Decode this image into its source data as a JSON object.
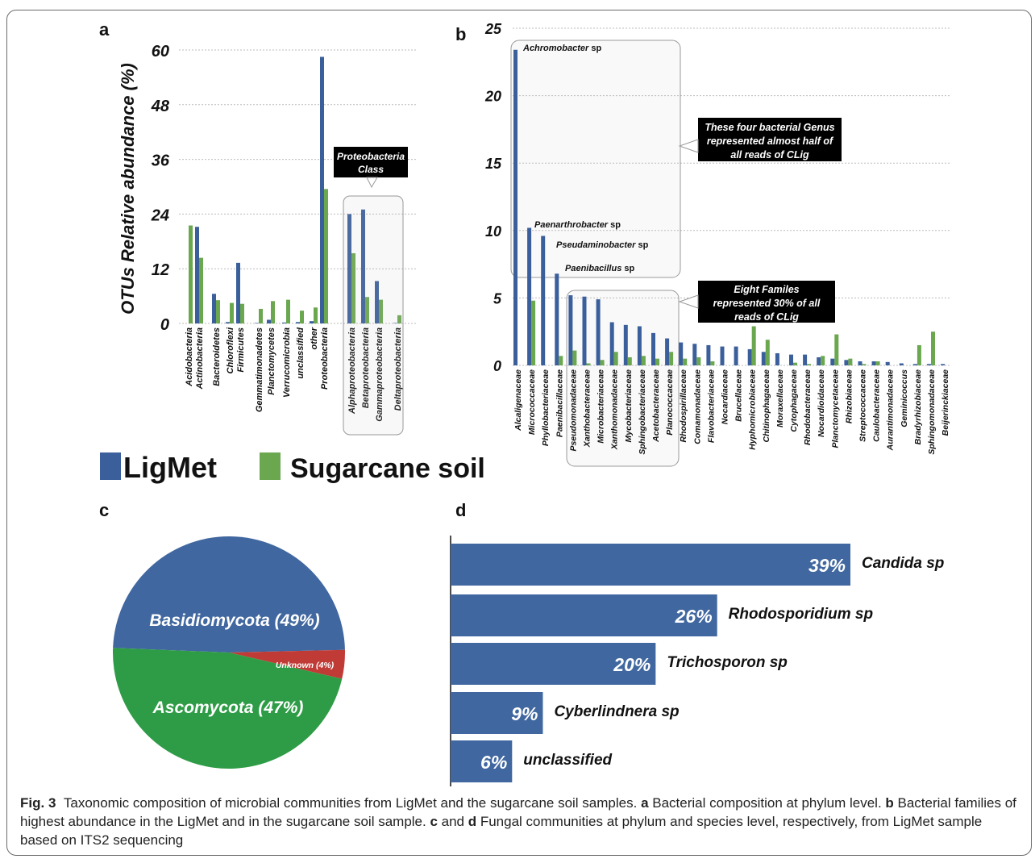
{
  "colors": {
    "ligmet": "#3b5f9b",
    "sugarcane": "#6aa74f",
    "basidio": "#40679f",
    "asco": "#2e9c46",
    "unknown": "#c13b36",
    "fungi_bar": "#40679f"
  },
  "legend": {
    "ligmet": "LigMet",
    "sugarcane": "Sugarcane soil"
  },
  "panels": {
    "a": "a",
    "b": "b",
    "c": "c",
    "d": "d"
  },
  "chart_data": [
    {
      "panel": "a",
      "type": "bar",
      "ylabel": "OTUs Relative abundance (%)",
      "ylim": [
        0,
        60
      ],
      "yticks": [
        0,
        12,
        24,
        36,
        48,
        60
      ],
      "grid": true,
      "categories": [
        "Acidobacteria",
        "Actinobacteria",
        "Bacteroidetes",
        "Chloroflexi",
        "Firmicutes",
        "Gemmatimonadetes",
        "Planctomycetes",
        "Verrucomicrobia",
        "unclassified",
        "other",
        "Proteobacteria",
        "Alphaproteobacteria",
        "Betaproteobacteria",
        "Gammaproteobacteria",
        "Deltaproteobacteria"
      ],
      "series": [
        {
          "name": "LigMet",
          "values": [
            0.0,
            21.2,
            6.5,
            0.3,
            13.3,
            0.1,
            0.8,
            0.2,
            0.3,
            0.5,
            58.5,
            24.0,
            25.0,
            9.3,
            0.1
          ]
        },
        {
          "name": "Sugarcane soil",
          "values": [
            21.5,
            14.4,
            5.1,
            4.5,
            4.3,
            3.2,
            4.9,
            5.2,
            2.8,
            3.5,
            29.5,
            15.4,
            5.8,
            5.2,
            1.8
          ]
        }
      ],
      "annotation": "Proteobacteria Class"
    },
    {
      "panel": "b",
      "type": "bar",
      "ylim": [
        0,
        25
      ],
      "yticks": [
        0,
        5,
        10,
        15,
        20,
        25
      ],
      "grid": true,
      "categories": [
        "Alcaligenaceae",
        "Micrococcaceae",
        "Phyllobacteriaceae",
        "Paenibacillaceae",
        "Pseudomonadaceae",
        "Xanthobacteraceae",
        "Microbacteriaceae",
        "Xanthomonadaceae",
        "Mycobacteriaceae",
        "Sphingobacteriaceae",
        "Acetobacteraceae",
        "Planococcaceae",
        "Rhodospirillaceae",
        "Comamonadaceae",
        "Flavobacteriaceae",
        "Nocardiaceae",
        "Brucellaceae",
        "Hyphomicrobiaceae",
        "Chitinophagaceae",
        "Moraxellaceae",
        "Cytophagaceae",
        "Rhodobacteraceae",
        "Nocardioidaceae",
        "Planctomycetaceae",
        "Rhizobiaceae",
        "Streptococcaceae",
        "Caulobacteraceae",
        "Aurantimonadaceae",
        "Geminicoccus",
        "Bradyrhizobiaceae",
        "Sphingomonadaceae",
        "Beijerinckiaceae"
      ],
      "series": [
        {
          "name": "LigMet",
          "values": [
            23.4,
            10.2,
            9.6,
            6.8,
            5.2,
            5.1,
            4.9,
            3.2,
            3.0,
            2.9,
            2.4,
            2.0,
            1.7,
            1.6,
            1.5,
            1.4,
            1.4,
            1.2,
            1.0,
            0.9,
            0.8,
            0.8,
            0.6,
            0.5,
            0.4,
            0.3,
            0.3,
            0.25,
            0.15,
            0.1,
            0.1,
            0.1
          ]
        },
        {
          "name": "Sugarcane soil",
          "values": [
            0.0,
            4.8,
            0.0,
            0.7,
            1.1,
            0.15,
            0.4,
            1.0,
            0.6,
            0.7,
            0.5,
            1.0,
            0.5,
            0.6,
            0.3,
            0.0,
            0.0,
            2.9,
            1.9,
            0.0,
            0.2,
            0.1,
            0.7,
            2.3,
            0.5,
            0.1,
            0.3,
            0.0,
            0.0,
            1.5,
            2.5,
            0.0
          ]
        }
      ],
      "labels": {
        "achromobacter": {
          "genus": "Achromobacter",
          "suffix": "sp"
        },
        "paenarthrobacter": {
          "genus": "Paenarthrobacter",
          "suffix": "sp"
        },
        "pseudaminobacter": {
          "genus": "Pseudaminobacter",
          "suffix": "sp"
        },
        "paenibacillus": {
          "genus": "Paenibacillus",
          "suffix": "sp"
        }
      },
      "callouts": {
        "genus": [
          "These four bacterial Genus",
          "represented almost half of",
          "all reads of CLig"
        ],
        "families": [
          "Eight Familes",
          "represented 30% of all",
          "reads of CLig"
        ]
      }
    },
    {
      "panel": "c",
      "type": "pie",
      "slices": [
        {
          "label": "Basidiomycota (49%)",
          "value": 49
        },
        {
          "label": "Unknown (4%)",
          "value": 4
        },
        {
          "label": "Ascomycota (47%)",
          "value": 47
        }
      ]
    },
    {
      "panel": "d",
      "type": "bar",
      "orientation": "horizontal",
      "categories": [
        "Candida sp",
        "Rhodosporidium sp",
        "Trichosporon sp",
        "Cyberlindnera sp",
        "unclassified"
      ],
      "values": [
        39,
        26,
        20,
        9,
        6
      ],
      "value_labels": [
        "39%",
        "26%",
        "20%",
        "9%",
        "6%"
      ]
    }
  ],
  "caption": {
    "fig": "Fig. 3",
    "t1": "Taxonomic composition of microbial communities from LigMet and the sugarcane soil samples. ",
    "a": "a",
    "t2": " Bacterial composition at phylum level. ",
    "b": "b",
    "t3": " Bacterial families of highest abundance in the LigMet and in the sugarcane soil sample. ",
    "c": "c",
    "t4": " and ",
    "d": "d",
    "t5": " Fungal communities at phylum and species level, respectively, from LigMet sample based on ITS2 sequencing"
  }
}
